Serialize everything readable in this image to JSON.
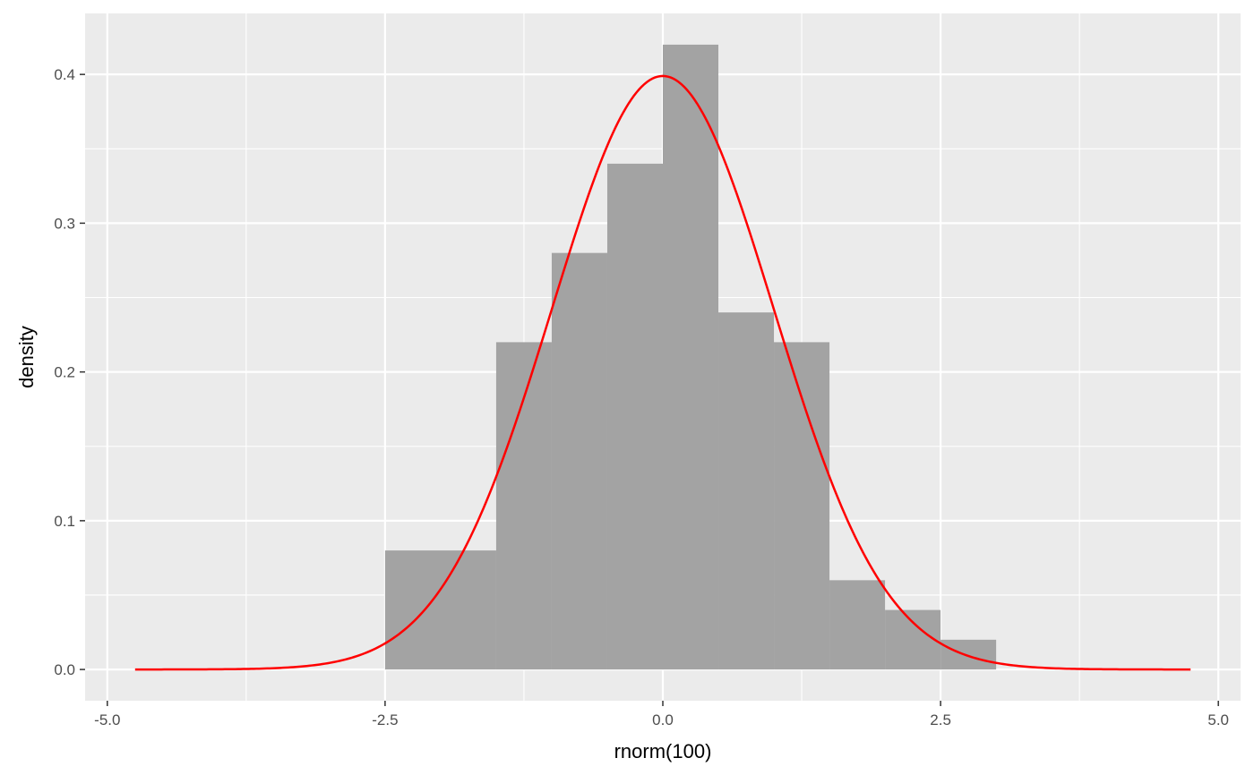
{
  "chart_data": {
    "type": "bar",
    "subtype": "histogram-with-density-curve",
    "xlabel": "rnorm(100)",
    "ylabel": "density",
    "xlim": [
      -5.2,
      5.2
    ],
    "ylim": [
      -0.021,
      0.441
    ],
    "x_ticks": [
      -5.0,
      -2.5,
      0.0,
      2.5,
      5.0
    ],
    "x_tick_labels": [
      "-5.0",
      "-2.5",
      "0.0",
      "2.5",
      "5.0"
    ],
    "y_ticks": [
      0.0,
      0.1,
      0.2,
      0.3,
      0.4
    ],
    "y_tick_labels": [
      "0.0",
      "0.1",
      "0.2",
      "0.3",
      "0.4"
    ],
    "grid": true,
    "bins": [
      {
        "x0": -2.5,
        "x1": -1.5,
        "density": 0.08
      },
      {
        "x0": -1.5,
        "x1": -1.0,
        "density": 0.22
      },
      {
        "x0": -1.0,
        "x1": -0.5,
        "density": 0.28
      },
      {
        "x0": -0.5,
        "x1": 0.0,
        "density": 0.34
      },
      {
        "x0": 0.0,
        "x1": 0.5,
        "density": 0.42
      },
      {
        "x0": 0.5,
        "x1": 1.0,
        "density": 0.24
      },
      {
        "x0": 1.0,
        "x1": 1.5,
        "density": 0.22
      },
      {
        "x0": 1.5,
        "x1": 2.0,
        "density": 0.06
      },
      {
        "x0": 2.0,
        "x1": 2.5,
        "density": 0.04
      },
      {
        "x0": 2.5,
        "x1": 3.0,
        "density": 0.02
      }
    ],
    "density_curve": {
      "function": "normal pdf",
      "mean": 0,
      "sd": 1,
      "x_range": [
        -4.75,
        4.75
      ]
    },
    "colors": {
      "panel_background": "#ebebeb",
      "grid_line": "#ffffff",
      "bar_fill": "#a3a3a3",
      "curve": "#ff0000",
      "tick_mark": "#333333"
    }
  }
}
